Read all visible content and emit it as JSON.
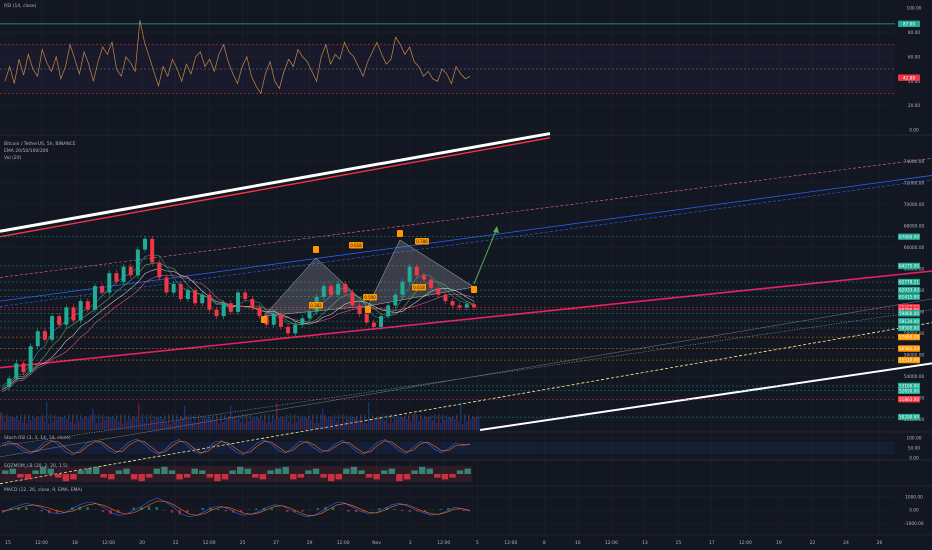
{
  "colors": {
    "background": "#131722",
    "grid": "#1e222d",
    "rsi_line": "#c8884a",
    "red": "#f23645",
    "green": "#22ab94",
    "pink": "#e91e63",
    "blue": "#2962ff",
    "orange": "#ff9800",
    "white": "#ffffff",
    "text": "#b2b5be"
  },
  "indicators": {
    "rsi_title": "RSI (14, close)",
    "symbol_title": "Bitcoin / TetherUS, 5h, BINANCE",
    "ema_title": "EMA 20/50/100/200",
    "vol_title": "Vol (20)",
    "stoch_title": "Stoch RSI (3, 3, 14, 14, close)",
    "squeeze_title": "SQZMOM_LB (20, 2, 20, 1.5)",
    "macd_title": "MACD (12, 26, close, 9, EMA, EMA)"
  },
  "chart_data": [
    {
      "type": "line",
      "panel": "rsi",
      "title": "RSI (14, close)",
      "y_ticks": [
        "100.00",
        "80.00",
        "60.00",
        "40.00",
        "20.00",
        "0.00"
      ],
      "ylim": [
        0,
        100
      ],
      "levels": [
        70,
        50,
        30
      ],
      "badges": [
        {
          "label": "87.00",
          "value": 87,
          "color": "#22ab94"
        },
        {
          "label": "42.88",
          "value": 42.88,
          "color": "#f23645"
        }
      ],
      "values": [
        40,
        52,
        38,
        58,
        45,
        62,
        50,
        44,
        66,
        55,
        48,
        60,
        42,
        52,
        70,
        58,
        46,
        64,
        54,
        40,
        56,
        68,
        62,
        72,
        50,
        44,
        60,
        55,
        48,
        90,
        72,
        60,
        48,
        36,
        52,
        44,
        58,
        50,
        40,
        54,
        46,
        60,
        64,
        52,
        58,
        48,
        62,
        70,
        56,
        46,
        38,
        52,
        60,
        44,
        36,
        30,
        46,
        56,
        40,
        34,
        48,
        58,
        52,
        66,
        60,
        56,
        48,
        40,
        60,
        70,
        54,
        62,
        58,
        72,
        64,
        60,
        52,
        44,
        56,
        64,
        72,
        62,
        54,
        58,
        76,
        70,
        62,
        68,
        56,
        52,
        44,
        48,
        42,
        40,
        50,
        46,
        38,
        52,
        46,
        42,
        44
      ]
    },
    {
      "type": "line",
      "panel": "price",
      "title": "Bitcoin / TetherUS, 5h, BINANCE",
      "y_ticks": [
        "74000.00",
        "72000.00",
        "70000.00",
        "68000.00",
        "66000.00",
        "64000.00",
        "62000.00",
        "60000.00",
        "58000.00",
        "56000.00",
        "54000.00",
        "52000.00",
        "50000.00"
      ],
      "ylim": [
        49000,
        76000
      ],
      "price_badges": [
        {
          "label": "67000.00",
          "value": 67000,
          "color": "#22ab94"
        },
        {
          "label": "64275.00",
          "value": 64275,
          "color": "#22ab94"
        },
        {
          "label": "62778.21",
          "value": 62778,
          "color": "#22ab94"
        },
        {
          "label": "62033.43",
          "value": 62033,
          "color": "#22ab94"
        },
        {
          "label": "61415.00",
          "value": 61415,
          "color": "#22ab94"
        },
        {
          "label": "60417.99",
          "value": 60417,
          "color": "#f23645"
        },
        {
          "label": "60200.00",
          "value": 60200,
          "color": "#f23645"
        },
        {
          "label": "59860.00",
          "value": 59860,
          "color": "#22ab94"
        },
        {
          "label": "59134.00",
          "value": 59134,
          "color": "#22ab94"
        },
        {
          "label": "58500.00",
          "value": 58500,
          "color": "#22ab94"
        },
        {
          "label": "57650.00",
          "value": 57650,
          "color": "#ff9800"
        },
        {
          "label": "56581.23",
          "value": 56581,
          "color": "#ff9800"
        },
        {
          "label": "55510.00",
          "value": 55510,
          "color": "#ff9800"
        },
        {
          "label": "53100.00",
          "value": 53100,
          "color": "#22ab94"
        },
        {
          "label": "52650.00",
          "value": 52650,
          "color": "#22ab94"
        },
        {
          "label": "51863.00",
          "value": 51863,
          "color": "#f23645"
        },
        {
          "label": "50200.00",
          "value": 50200,
          "color": "#22ab94"
        }
      ],
      "last_price": {
        "label": "60417.99",
        "value": 60417,
        "color": "#f23645"
      },
      "pattern_labels": [
        "0.382",
        "0.618",
        "0.500",
        "0.618",
        "0.786"
      ],
      "close": [
        53000,
        53800,
        55200,
        54400,
        56800,
        58200,
        57400,
        59600,
        58800,
        60400,
        59200,
        61000,
        60200,
        62400,
        61800,
        63600,
        62800,
        64200,
        63400,
        65800,
        66800,
        64600,
        63200,
        61800,
        62600,
        61200,
        62000,
        60800,
        61600,
        60200,
        59600,
        60800,
        60000,
        61800,
        61200,
        60400,
        59600,
        58800,
        59800,
        58600,
        58000,
        58800,
        59400,
        60000,
        61400,
        62400,
        61600,
        62600,
        61800,
        60600,
        59800,
        59000,
        58600,
        59600,
        60600,
        61600,
        62800,
        64200,
        63400,
        63000,
        62200,
        61600,
        61000,
        60600,
        60400,
        60700,
        60417
      ]
    },
    {
      "type": "line",
      "panel": "stoch_rsi",
      "title": "Stoch RSI (3, 3, 14, 14, close)",
      "y_ticks": [
        "100.00",
        "50.00",
        "0.00"
      ],
      "ylim": [
        0,
        100
      ],
      "series": [
        {
          "values": [
            70,
            85,
            60,
            35,
            20,
            45,
            80,
            90,
            65,
            30,
            15,
            40,
            75,
            88,
            70,
            40,
            22,
            50,
            82,
            95,
            72,
            38,
            18,
            42,
            78,
            92,
            66,
            34,
            20,
            48,
            80,
            86,
            60,
            30,
            16,
            44,
            76,
            90,
            70,
            36,
            24,
            52,
            84,
            78,
            50,
            28,
            40,
            70,
            88,
            64,
            32,
            18,
            46,
            80,
            92,
            68,
            36,
            22,
            54,
            82,
            74,
            44,
            26,
            48,
            76,
            60,
            70
          ]
        },
        {
          "values": [
            60,
            75,
            72,
            50,
            30,
            32,
            62,
            84,
            80,
            50,
            24,
            28,
            58,
            80,
            82,
            56,
            32,
            34,
            66,
            86,
            84,
            56,
            28,
            30,
            60,
            84,
            80,
            50,
            26,
            32,
            64,
            82,
            74,
            46,
            24,
            30,
            60,
            82,
            80,
            54,
            30,
            38,
            68,
            82,
            66,
            40,
            34,
            56,
            78,
            76,
            48,
            26,
            32,
            64,
            86,
            80,
            52,
            30,
            40,
            70,
            80,
            60,
            36,
            38,
            62,
            68,
            66
          ]
        }
      ]
    },
    {
      "type": "bar",
      "panel": "squeeze_momentum",
      "title": "SQZMOM_LB (20, 2, 20, 1.5)",
      "values": [
        2,
        3,
        -2,
        -3,
        2,
        4,
        3,
        -2,
        -4,
        -3,
        2,
        3,
        4,
        -2,
        -3,
        2,
        3,
        -3,
        -4,
        -2,
        3,
        4,
        2,
        -3,
        -2,
        3,
        2,
        -2,
        -4,
        -3,
        2,
        4,
        3,
        -2,
        -3,
        2,
        3,
        4,
        -3,
        -2,
        2,
        3,
        -2,
        -4,
        -3,
        3,
        4,
        2,
        -2,
        -3,
        2,
        3,
        -4,
        -3,
        2,
        4,
        3,
        -2,
        -3,
        -2,
        2,
        3
      ]
    },
    {
      "type": "line",
      "panel": "macd",
      "title": "MACD (12, 26, close, 9, EMA, EMA)",
      "y_ticks": [
        "1000.00",
        "0.00",
        "-1000.00"
      ],
      "ylim": [
        -1500,
        1500
      ],
      "series": [
        {
          "values": [
            -200,
            100,
            300,
            500,
            400,
            200,
            -100,
            -300,
            -200,
            100,
            400,
            600,
            500,
            200,
            -200,
            -400,
            -300,
            0,
            300,
            700,
            900,
            600,
            200,
            -300,
            -500,
            -400,
            -100,
            200,
            300,
            100,
            -200,
            -400,
            -300,
            -100,
            200,
            400,
            300,
            0,
            -300,
            -500,
            -400,
            -100,
            300,
            600,
            500,
            200,
            -100,
            -300,
            -200,
            100,
            400,
            500,
            300,
            0,
            -200,
            -400,
            -300,
            -100,
            200,
            100,
            -100
          ]
        },
        {
          "values": [
            -100,
            0,
            150,
            300,
            380,
            300,
            150,
            -50,
            -180,
            -100,
            150,
            380,
            480,
            360,
            100,
            -180,
            -300,
            -180,
            100,
            420,
            680,
            640,
            400,
            40,
            -300,
            -400,
            -260,
            20,
            220,
            200,
            0,
            -240,
            -320,
            -200,
            40,
            280,
            320,
            140,
            -140,
            -380,
            -420,
            -240,
            80,
            400,
            480,
            320,
            60,
            -180,
            -220,
            -40,
            240,
            420,
            380,
            140,
            -100,
            -280,
            -320,
            -180,
            60,
            100,
            -20
          ]
        }
      ]
    }
  ],
  "x_axis": {
    "ticks": [
      "15",
      "12:00",
      "18",
      "12:00",
      "20",
      "22",
      "12:00",
      "25",
      "27",
      "29",
      "12:00",
      "Nov",
      "3",
      "12:00",
      "5",
      "12:00",
      "8",
      "10",
      "12:00",
      "13",
      "15",
      "17",
      "12:00",
      "19",
      "22",
      "24",
      "26"
    ]
  }
}
